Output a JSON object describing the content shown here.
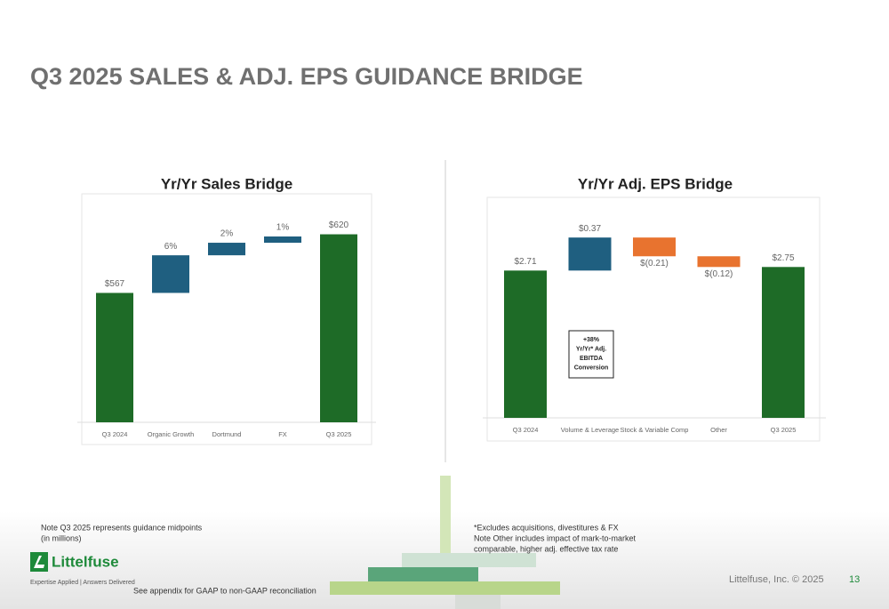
{
  "slide": {
    "title": "Q3 2025 SALES & ADJ. EPS GUIDANCE BRIDGE",
    "note_left": [
      "Note Q3 2025 represents guidance midpoints",
      "(in millions)"
    ],
    "note_right": [
      "*Excludes acquisitions, divestitures & FX",
      "Note Other includes impact of mark-to-market",
      "comparable, higher adj. effective tax rate"
    ],
    "appendix": "See appendix for GAAP to non-GAAP reconciliation",
    "logo": "Littelfuse",
    "tagline": "Expertise Applied | Answers Delivered",
    "copyright": "Littelfuse, Inc. © 2025",
    "page_number": "13"
  },
  "chart_data": [
    {
      "type": "waterfall",
      "title": "Yr/Yr Sales Bridge",
      "categories": [
        "Q3 2024",
        "Organic Growth",
        "Dortmund",
        "FX",
        "Q3 2025"
      ],
      "values": [
        567,
        6,
        2,
        1,
        620
      ],
      "value_labels": [
        "$567",
        "6%",
        "2%",
        "1%",
        "$620"
      ],
      "steps_in_percent": true,
      "bar_colors": [
        "#1e6b27",
        "#1f5f80",
        "#1f5f80",
        "#1f5f80",
        "#1e6b27"
      ],
      "ylim": [
        450,
        655
      ]
    },
    {
      "type": "waterfall",
      "title": "Yr/Yr Adj. EPS Bridge",
      "categories": [
        "Q3 2024",
        "Volume & Leverage",
        "Stock & Variable Comp",
        "Other",
        "Q3 2025"
      ],
      "values": [
        2.71,
        0.37,
        -0.21,
        -0.12,
        2.75
      ],
      "value_labels": [
        "$2.71",
        "$0.37",
        "$(0.21)",
        "$(0.12)",
        "$2.75"
      ],
      "steps_in_percent": false,
      "bar_colors": [
        "#1e6b27",
        "#1f5f80",
        "#e8732f",
        "#e8732f",
        "#1e6b27"
      ],
      "ylim": [
        1.06,
        3.5
      ],
      "annotation": [
        "+38%",
        "Yr/Yr* Adj.",
        "EBITDA",
        "Conversion"
      ]
    }
  ]
}
